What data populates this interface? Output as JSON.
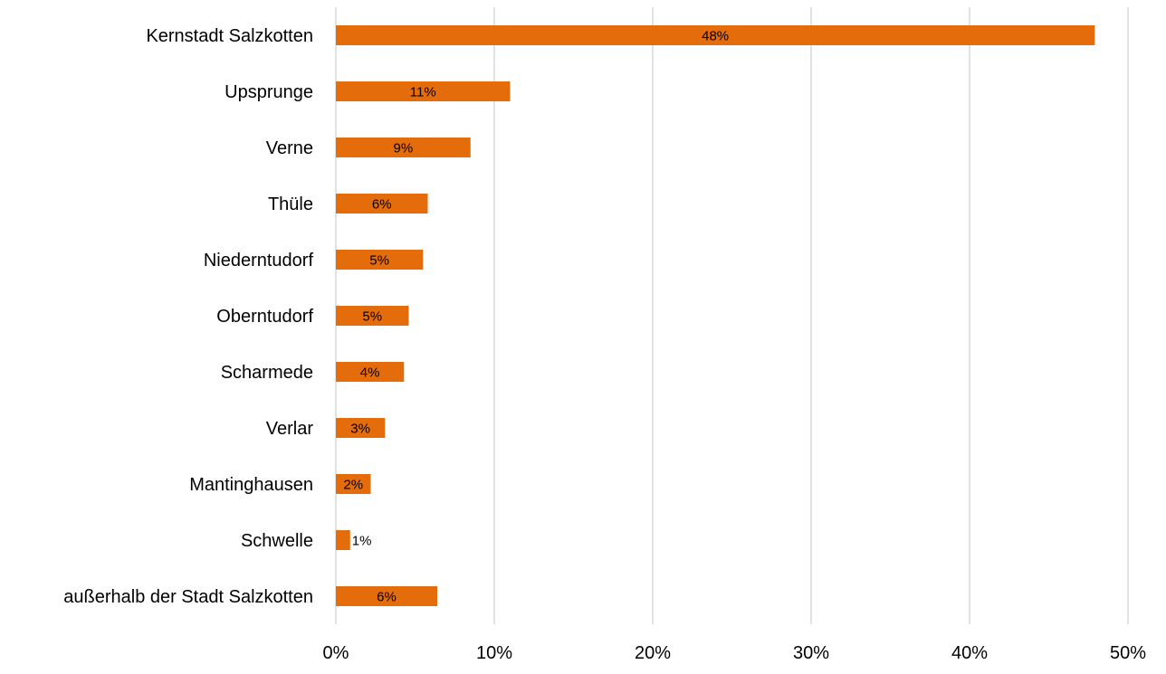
{
  "chart_data": {
    "type": "bar",
    "orientation": "horizontal",
    "categories": [
      "Kernstadt Salzkotten",
      "Upsprunge",
      "Verne",
      "Thüle",
      "Niederntudorf",
      "Oberntudorf",
      "Scharmede",
      "Verlar",
      "Mantinghausen",
      "Schwelle",
      "außerhalb der Stadt Salzkotten"
    ],
    "values": [
      47.9,
      11.0,
      8.5,
      5.8,
      5.5,
      4.6,
      4.3,
      3.1,
      2.2,
      0.9,
      6.4
    ],
    "data_labels": [
      "48%",
      "11%",
      "9%",
      "6%",
      "5%",
      "5%",
      "4%",
      "3%",
      "2%",
      "1%",
      "6%"
    ],
    "xlim": [
      0,
      50
    ],
    "x_ticks": [
      "0%",
      "10%",
      "20%",
      "30%",
      "40%",
      "50%"
    ],
    "title": "",
    "xlabel": "",
    "ylabel": "",
    "grid": "vertical",
    "legend": "none",
    "colors": {
      "bar": "#E46C0A",
      "grid": "#D9D9D9",
      "text": "#000000"
    }
  }
}
